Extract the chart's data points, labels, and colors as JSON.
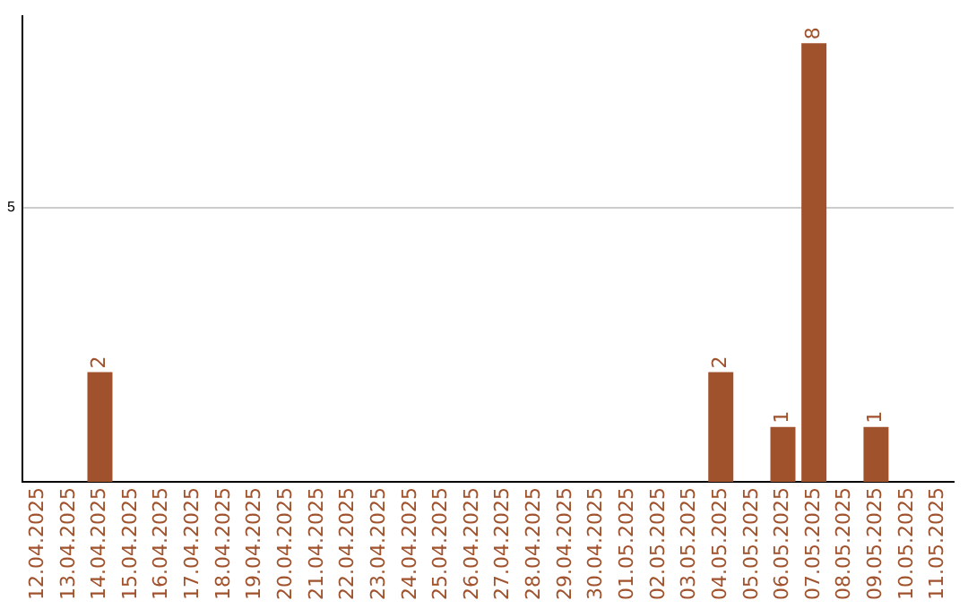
{
  "chart_data": {
    "type": "bar",
    "categories": [
      "12.04.2025",
      "13.04.2025",
      "14.04.2025",
      "15.04.2025",
      "16.04.2025",
      "17.04.2025",
      "18.04.2025",
      "19.04.2025",
      "20.04.2025",
      "21.04.2025",
      "22.04.2025",
      "23.04.2025",
      "24.04.2025",
      "25.04.2025",
      "26.04.2025",
      "27.04.2025",
      "28.04.2025",
      "29.04.2025",
      "30.04.2025",
      "01.05.2025",
      "02.05.2025",
      "03.05.2025",
      "04.05.2025",
      "05.05.2025",
      "06.05.2025",
      "07.05.2025",
      "08.05.2025",
      "09.05.2025",
      "10.05.2025",
      "11.05.2025"
    ],
    "values": [
      0,
      0,
      2,
      0,
      0,
      0,
      0,
      0,
      0,
      0,
      0,
      0,
      0,
      0,
      0,
      0,
      0,
      0,
      0,
      0,
      0,
      0,
      2,
      0,
      1,
      8,
      0,
      1,
      0,
      0
    ],
    "value_labels": [
      null,
      null,
      "2",
      null,
      null,
      null,
      null,
      null,
      null,
      null,
      null,
      null,
      null,
      null,
      null,
      null,
      null,
      null,
      null,
      null,
      null,
      null,
      "2",
      null,
      "1",
      "8",
      null,
      "1",
      null,
      null
    ],
    "color": "#a0522d",
    "ylim": [
      0,
      8.5
    ],
    "yticks": [
      5
    ],
    "grid": "y",
    "legend": false
  }
}
